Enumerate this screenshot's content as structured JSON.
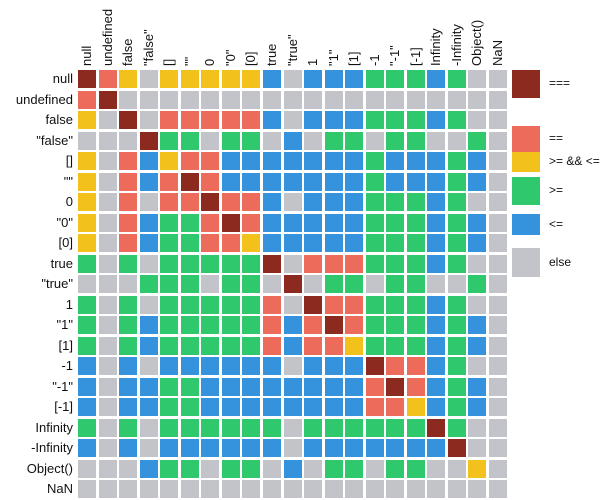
{
  "chart_data": {
    "type": "heatmap",
    "labels": [
      "null",
      "undefined",
      "false",
      "\"false\"",
      "[]",
      "\"\"",
      "0",
      "\"0\"",
      "[0]",
      "true",
      "\"true\"",
      "1",
      "\"1\"",
      "[1]",
      "-1",
      "\"-1\"",
      "[-1]",
      "Infinity",
      "-Infinity",
      "Object()",
      "NaN"
    ],
    "legend": [
      {
        "code": "D",
        "label": "===",
        "color": "#8c2a1f"
      },
      {
        "code": "R",
        "label": "==",
        "color": "#ec6b5b"
      },
      {
        "code": "Y",
        "label": ">= && <=",
        "color": "#f3c11c"
      },
      {
        "code": "G",
        "label": ">=",
        "color": "#2fc86c"
      },
      {
        "code": "B",
        "label": "<=",
        "color": "#3592dc"
      },
      {
        "code": "X",
        "label": "else",
        "color": "#c3c4c9"
      }
    ],
    "matrix": [
      "DRYXYYYYYBXBBBGGGBGXX",
      "RDXXXXXXXXXXXXXXXXXXX",
      "YXDXRRRRRBXBBBGGGBGXX",
      "XXXDGGXGGXBXGGXGGXXGX",
      "YXRBYRRBBBBBBBGBBBGBX",
      "YXRBRDRBBBBBBBGBBBGBX",
      "YXRXRRDRRBXBBBGGGBGXX",
      "YXRBGGRDRBBBBBGGGBGBX",
      "YXRBGGRRYBBBBBGGGBGBX",
      "GXGXGGGGGDXRRRGGGBGXX",
      "XXXGGGXGGXDXGGXGGXXGX",
      "GXGXGGGGGRXDRRGGGBGXX",
      "GXGBGGGGGRBRDRGGGBGBX",
      "GXGBGGGGGRBRRYGGGBGBX",
      "BXBXBBBBBBXBBBDRRBGXX",
      "BXBBGGBBBBBBBBRDRBGBX",
      "BXBBGGBBBBBBBBRRYBGBX",
      "GXGXGGGGGGXGGGGGGDGXX",
      "BXBXBBBBBBXBBBBBBBDXX",
      "XXXBGGXGGXBXGGXGGXXYX",
      "XXXXXXXXXXXXXXXXXXXXX"
    ]
  }
}
